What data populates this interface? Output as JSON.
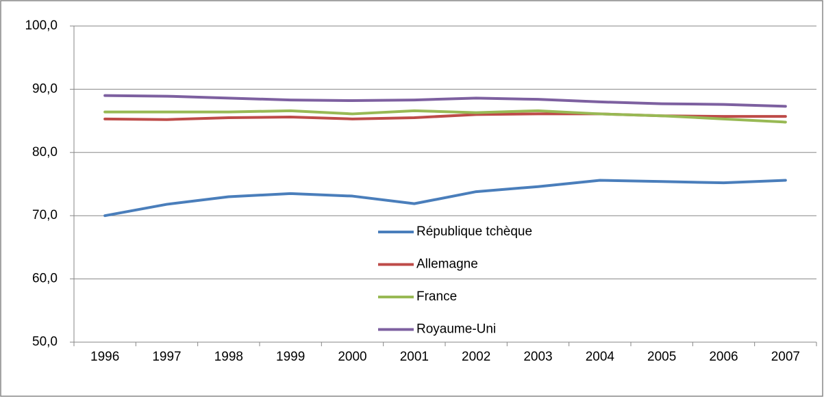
{
  "chart_data": {
    "type": "line",
    "categories": [
      "1996",
      "1997",
      "1998",
      "1999",
      "2000",
      "2001",
      "2002",
      "2003",
      "2004",
      "2005",
      "2006",
      "2007"
    ],
    "series": [
      {
        "name": "République tchèque",
        "color": "#4a7ebb",
        "values": [
          70.0,
          71.8,
          73.0,
          73.5,
          73.1,
          71.9,
          73.8,
          74.6,
          75.6,
          75.4,
          75.2,
          75.6
        ]
      },
      {
        "name": "Allemagne",
        "color": "#be4b48",
        "values": [
          85.3,
          85.2,
          85.5,
          85.6,
          85.3,
          85.5,
          86.0,
          86.1,
          86.1,
          85.8,
          85.7,
          85.7
        ]
      },
      {
        "name": "France",
        "color": "#98b954",
        "values": [
          86.4,
          86.4,
          86.4,
          86.6,
          86.1,
          86.6,
          86.3,
          86.6,
          86.1,
          85.8,
          85.3,
          84.8
        ]
      },
      {
        "name": "Royaume-Uni",
        "color": "#7d60a0",
        "values": [
          89.0,
          88.9,
          88.6,
          88.3,
          88.2,
          88.3,
          88.6,
          88.4,
          88.0,
          87.7,
          87.6,
          87.3
        ]
      }
    ],
    "ylim": [
      50,
      100
    ],
    "yticks": [
      {
        "value": 50,
        "label": "50,0"
      },
      {
        "value": 60,
        "label": "60,0"
      },
      {
        "value": 70,
        "label": "70,0"
      },
      {
        "value": 80,
        "label": "80,0"
      },
      {
        "value": 90,
        "label": "90,0"
      },
      {
        "value": 100,
        "label": "100,0"
      }
    ],
    "grid": true
  }
}
